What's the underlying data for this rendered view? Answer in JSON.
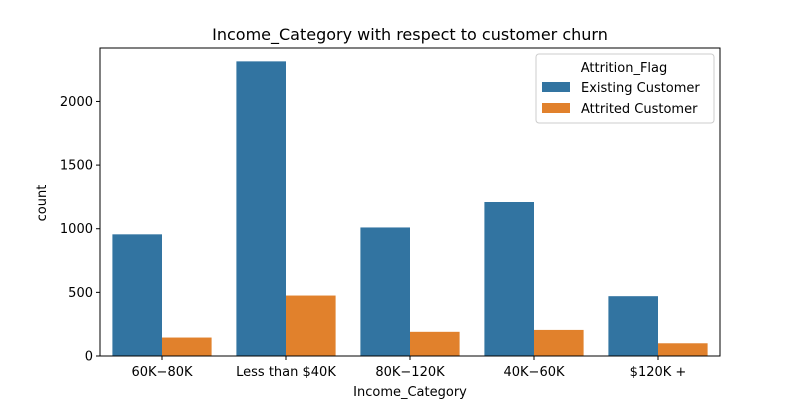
{
  "chart_data": {
    "type": "bar",
    "title": "Income_Category with respect to customer churn",
    "xlabel": "Income_Category",
    "ylabel": "count",
    "categories": [
      "$60K - $80K",
      "Less than $40K",
      "$80K - $120K",
      "$40K - $60K",
      "$120K +"
    ],
    "display_categories": [
      "60K−80K",
      "Less than $40K",
      "80K−120K",
      "40K−60K",
      "$120K +"
    ],
    "series": [
      {
        "name": "Existing Customer",
        "values": [
          956,
          2315,
          1010,
          1210,
          470
        ],
        "color": "#3274a1"
      },
      {
        "name": "Attrited Customer",
        "values": [
          145,
          475,
          190,
          205,
          100
        ],
        "color": "#e1812c"
      }
    ],
    "ylim": [
      0,
      2420
    ],
    "yticks": [
      0,
      500,
      1000,
      1500,
      2000
    ],
    "legend": {
      "title": "Attrition_Flag",
      "placement": "top-right"
    },
    "grid": false
  }
}
